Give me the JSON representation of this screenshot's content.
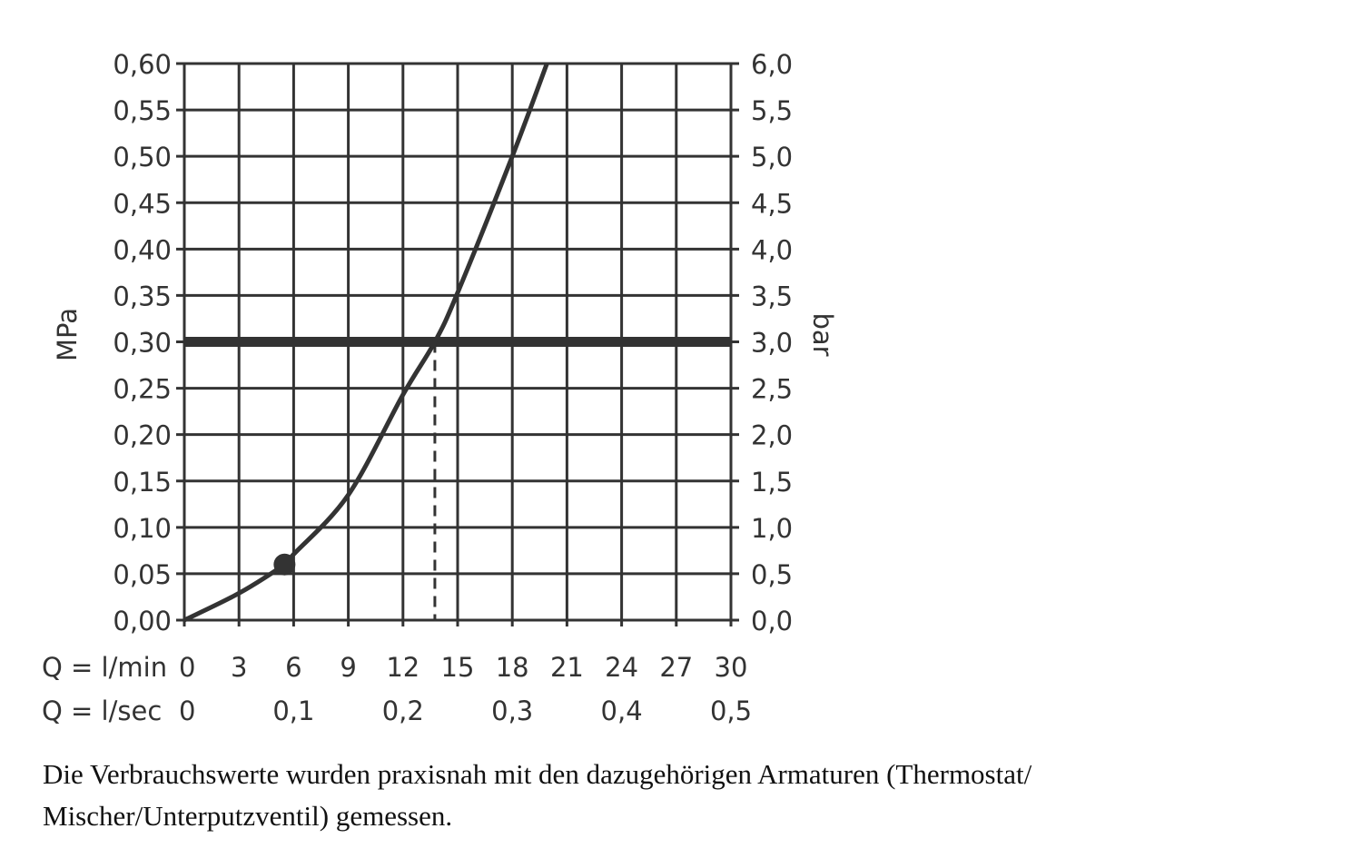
{
  "chart_data": {
    "type": "line",
    "x_axis_rows": [
      {
        "label": "Q = l/min",
        "ticks": [
          "0",
          "3",
          "6",
          "9",
          "12",
          "15",
          "18",
          "21",
          "24",
          "27",
          "30"
        ],
        "values": [
          0,
          3,
          6,
          9,
          12,
          15,
          18,
          21,
          24,
          27,
          30
        ]
      },
      {
        "label": "Q = l/sec",
        "ticks": [
          "0",
          "0,1",
          "0,2",
          "0,3",
          "0,4",
          "0,5"
        ],
        "values": [
          0,
          6,
          12,
          18,
          24,
          30
        ]
      }
    ],
    "xlim": [
      0,
      30
    ],
    "y_left": {
      "label": "MPa",
      "ticks": [
        "0,00",
        "0,05",
        "0,10",
        "0,15",
        "0,20",
        "0,25",
        "0,30",
        "0,35",
        "0,40",
        "0,45",
        "0,50",
        "0,55",
        "0,60"
      ],
      "ylim": [
        0,
        0.6
      ]
    },
    "y_right": {
      "label": "bar",
      "ticks": [
        "0,0",
        "0,5",
        "1,0",
        "1,5",
        "2,0",
        "2,5",
        "3,0",
        "3,5",
        "4,0",
        "4,5",
        "5,0",
        "5,5",
        "6,0"
      ],
      "ylim": [
        0,
        6
      ]
    },
    "grid": true,
    "series": [
      {
        "x": [
          0,
          3,
          5.5,
          6,
          9,
          12,
          13.75,
          15,
          18,
          19.9
        ],
        "y": [
          0,
          0.029,
          0.06,
          0.071,
          0.135,
          0.243,
          0.3,
          0.353,
          0.5,
          0.6
        ]
      }
    ],
    "marker_point": {
      "x": 5.5,
      "y": 0.06
    },
    "reference_line_y": 0.3,
    "dashed_line_x": 13.75,
    "color": "#333333"
  },
  "caption": "Die Verbrauchswerte wurden praxisnah mit den dazugehörigen Armaturen (Thermostat/ Mischer/Unterputzventil) gemessen."
}
